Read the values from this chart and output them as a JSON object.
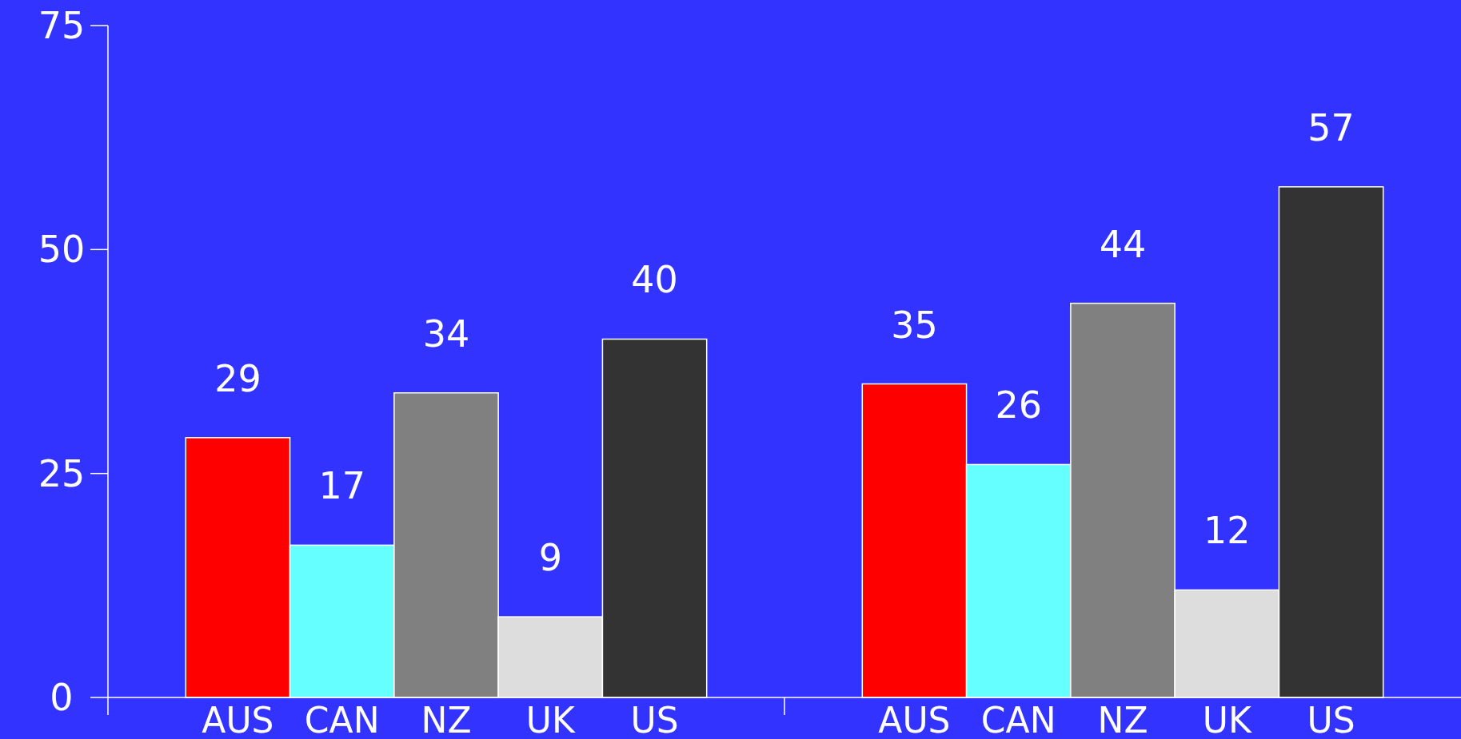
{
  "chart_data": {
    "type": "bar",
    "categories": [
      null,
      null
    ],
    "series": [
      {
        "name": "AUS",
        "color": "#ff0000",
        "values": [
          29,
          35
        ]
      },
      {
        "name": "CAN",
        "color": "#66ffff",
        "values": [
          17,
          26
        ]
      },
      {
        "name": "NZ",
        "color": "#808080",
        "values": [
          34,
          44
        ]
      },
      {
        "name": "UK",
        "color": "#dddddd",
        "values": [
          9,
          12
        ]
      },
      {
        "name": "US",
        "color": "#333333",
        "values": [
          40,
          57
        ]
      }
    ],
    "ylim": [
      0,
      75
    ],
    "yticks": [
      0,
      25,
      50,
      75
    ],
    "data_labels": true,
    "grid": false,
    "legend": "bottom"
  }
}
